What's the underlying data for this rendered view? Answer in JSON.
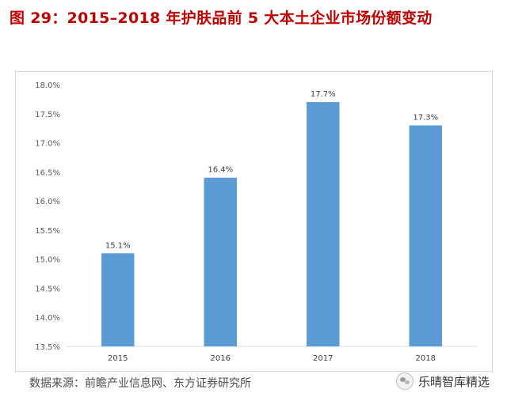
{
  "title": "图 29：2015–2018 年护肤品前 5 大本土企业市场份额变动",
  "source": "数据来源：前瞻产业信息网、东方证券研究所",
  "watermark": {
    "text": "乐晴智库精选",
    "icon": "wechat-icon"
  },
  "colors": {
    "bar": "#5b9bd5",
    "title": "#c00000",
    "grid": "#d9d9d9"
  },
  "chart_data": {
    "type": "bar",
    "categories": [
      "2015",
      "2016",
      "2017",
      "2018"
    ],
    "values": [
      15.1,
      16.4,
      17.7,
      17.3
    ],
    "data_labels": [
      "15.1%",
      "16.4%",
      "17.7%",
      "17.3%"
    ],
    "title": "2015–2018 年护肤品前 5 大本土企业市场份额变动",
    "xlabel": "",
    "ylabel": "",
    "ylim": [
      13.5,
      18.0
    ],
    "yticks": [
      13.5,
      14.0,
      14.5,
      15.0,
      15.5,
      16.0,
      16.5,
      17.0,
      17.5,
      18.0
    ],
    "ytick_labels": [
      "13.5%",
      "14.0%",
      "14.5%",
      "15.0%",
      "15.5%",
      "16.0%",
      "16.5%",
      "17.0%",
      "17.5%",
      "18.0%"
    ],
    "grid": false,
    "legend": "none"
  }
}
